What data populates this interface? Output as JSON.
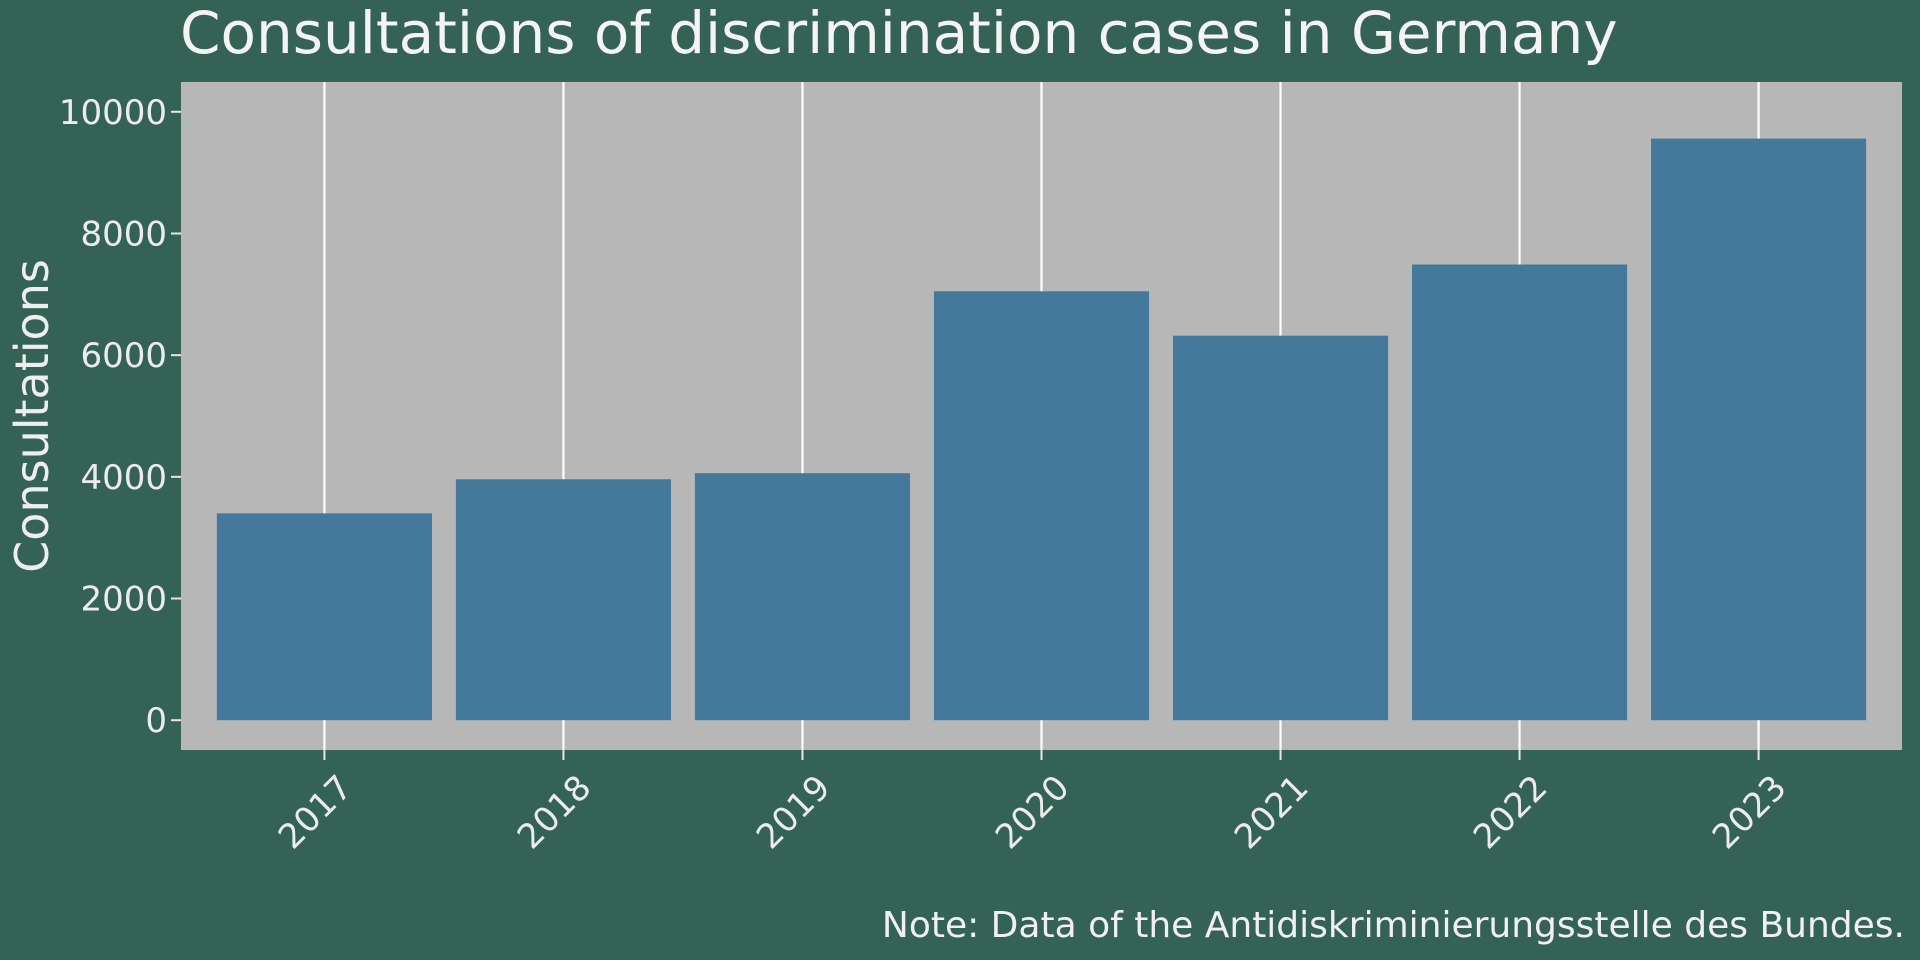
{
  "chart_data": {
    "type": "bar",
    "title": "Consultations of discrimination cases in Germany",
    "xlabel": "",
    "ylabel": "Consultations",
    "categories": [
      "2017",
      "2018",
      "2019",
      "2020",
      "2021",
      "2022",
      "2023"
    ],
    "values": [
      3400,
      3960,
      4060,
      7050,
      6320,
      7490,
      9560
    ],
    "ylim": [
      -490,
      10490
    ],
    "yticks": [
      0,
      2000,
      4000,
      6000,
      8000,
      10000
    ],
    "ytick_labels": [
      "0",
      "2000",
      "4000",
      "6000",
      "8000",
      "10000"
    ],
    "grid": "vertical-major",
    "note": "Note: Data of the Antidiskriminierungsstelle des Bundes."
  },
  "colors": {
    "background": "#346356",
    "panel": "#b7b7b7",
    "bar": "#44799c",
    "grid": "#ffffff",
    "text": "#f2f2f2"
  }
}
